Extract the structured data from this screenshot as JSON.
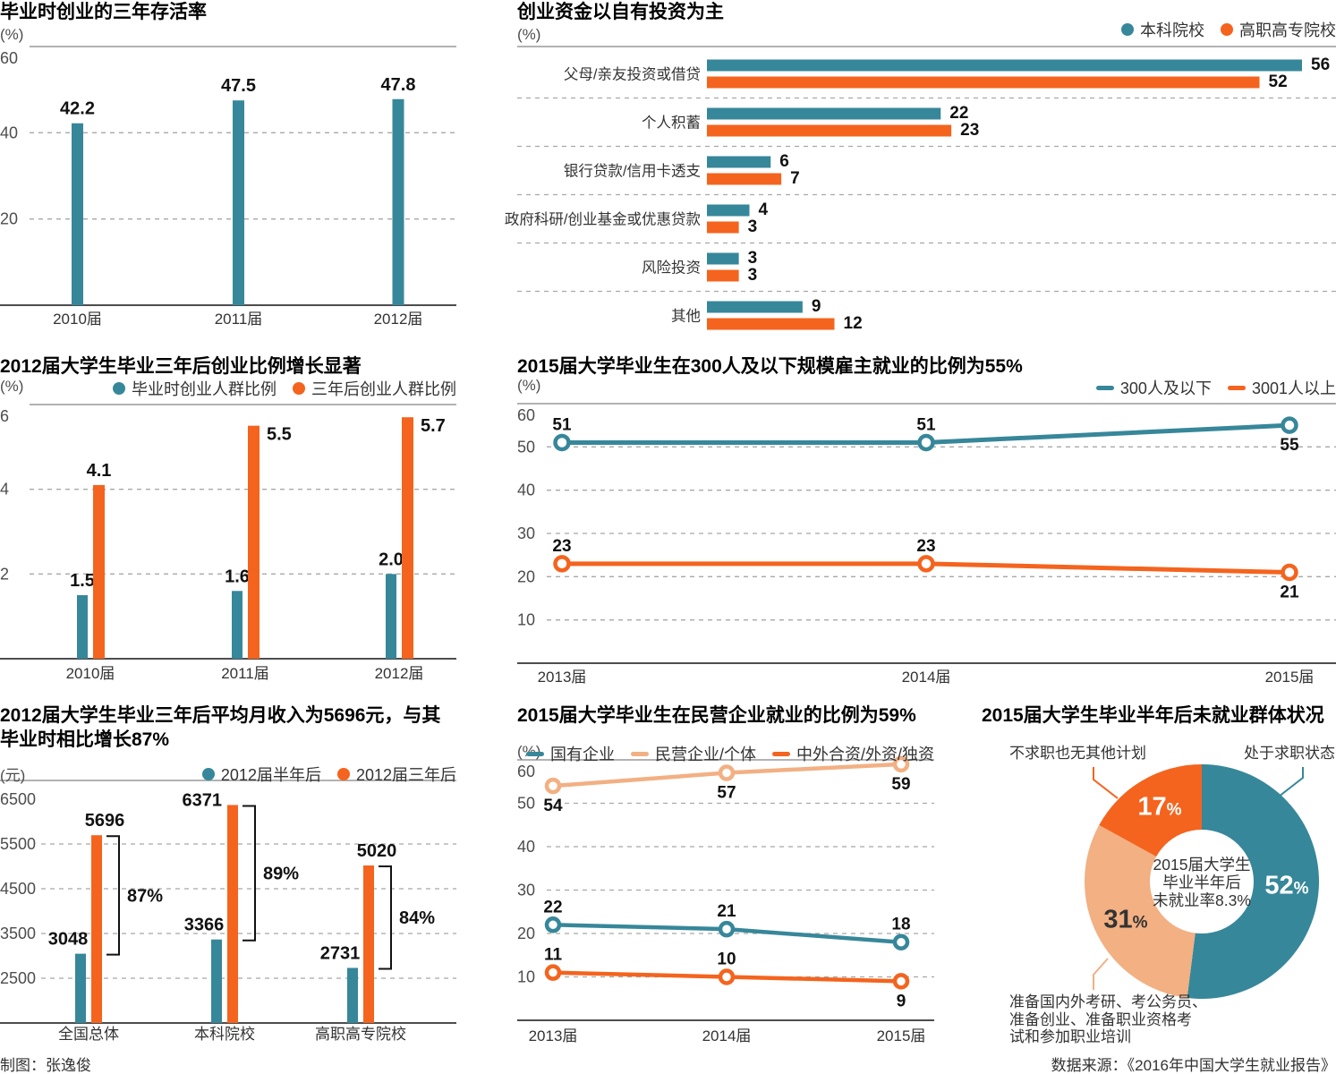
{
  "page": {
    "footer_left": "制图：张逸俊",
    "footer_right": "数据来源：《2016年中国大学生就业报告》",
    "percent_sign": "%"
  },
  "colors": {
    "teal": "#37879A",
    "orange": "#F4641E",
    "peach": "#F2B083",
    "title_text": "#000000",
    "body_text": "#333333",
    "tick_text": "#4D4D4D",
    "gridline": "#A8A8A8",
    "axis_line": "#4D4D4D",
    "top_line": "#999999",
    "value_label": "#111111"
  },
  "chart_data": [
    {
      "id": "survival",
      "type": "bar",
      "title": "毕业时创业的三年存活率",
      "unit": "(%)",
      "categories": [
        "2010届",
        "2011届",
        "2012届"
      ],
      "values": [
        42.2,
        47.5,
        47.8
      ],
      "value_labels": [
        "42.2",
        "47.5",
        "47.8"
      ],
      "series_color": "teal",
      "ylim": [
        0,
        60
      ],
      "yticks": [
        60,
        40,
        20
      ],
      "grid": "dashed"
    },
    {
      "id": "funding",
      "type": "hbar",
      "title": "创业资金以自有投资为主",
      "unit": "(%)",
      "legend": [
        {
          "label": "本科院校",
          "color": "teal",
          "marker": "dot"
        },
        {
          "label": "高职高专院校",
          "color": "orange",
          "marker": "dot"
        }
      ],
      "categories": [
        "父母/亲友投资或借贷",
        "个人积蓄",
        "银行贷款/信用卡透支",
        "政府科研/创业基金或优惠贷款",
        "风险投资",
        "其他"
      ],
      "series": [
        {
          "name": "本科院校",
          "color": "teal",
          "values": [
            56,
            22,
            6,
            4,
            3,
            9
          ]
        },
        {
          "name": "高职高专院校",
          "color": "orange",
          "values": [
            52,
            23,
            7,
            3,
            3,
            12
          ]
        }
      ],
      "xlim": [
        0,
        59
      ]
    },
    {
      "id": "startup",
      "type": "grouped-bar",
      "title": "2012届大学生毕业三年后创业比例增长显著",
      "unit": "(%)",
      "legend": [
        {
          "label": "毕业时创业人群比例",
          "color": "teal",
          "marker": "dot"
        },
        {
          "label": "三年后创业人群比例",
          "color": "orange",
          "marker": "dot"
        }
      ],
      "categories": [
        "2010届",
        "2011届",
        "2012届"
      ],
      "series": [
        {
          "name": "毕业时创业人群比例",
          "color": "teal",
          "values": [
            1.5,
            1.6,
            2.0
          ],
          "value_labels": [
            "1.5",
            "1.6",
            "2.0"
          ]
        },
        {
          "name": "三年后创业人群比例",
          "color": "orange",
          "values": [
            4.1,
            5.5,
            5.7
          ],
          "value_labels": [
            "4.1",
            "5.5",
            "5.7"
          ]
        }
      ],
      "ylim": [
        0,
        6
      ],
      "yticks": [
        6,
        4,
        2
      ],
      "grid": "dashed"
    },
    {
      "id": "employer",
      "type": "line",
      "title": "2015届大学毕业生在300人及以下规模雇主就业的比例为55%",
      "unit": "(%)",
      "legend": [
        {
          "label": "300人及以下",
          "color": "teal",
          "marker": "dash"
        },
        {
          "label": "3001人以上",
          "color": "orange",
          "marker": "dash"
        }
      ],
      "x": [
        "2013届",
        "2014届",
        "2015届"
      ],
      "series": [
        {
          "name": "300人及以下",
          "color": "teal",
          "values": [
            51,
            51,
            55
          ],
          "label_pos": [
            "above",
            "above",
            "below"
          ]
        },
        {
          "name": "3001人以上",
          "color": "orange",
          "values": [
            23,
            23,
            21
          ],
          "label_pos": [
            "above",
            "above",
            "below"
          ]
        }
      ],
      "ylim": [
        0,
        60
      ],
      "yticks": [
        60,
        50,
        40,
        30,
        20,
        10
      ],
      "grid": "dashed"
    },
    {
      "id": "income",
      "type": "grouped-bar",
      "title": "2012届大学生毕业三年后平均月收入为5696元，与其毕业时相比增长87%",
      "unit": "(元)",
      "legend": [
        {
          "label": "2012届半年后",
          "color": "teal",
          "marker": "dot"
        },
        {
          "label": "2012届三年后",
          "color": "orange",
          "marker": "dot"
        }
      ],
      "categories": [
        "全国总体",
        "本科院校",
        "高职高专院校"
      ],
      "series": [
        {
          "name": "2012届半年后",
          "color": "teal",
          "values": [
            3048,
            3366,
            2731
          ]
        },
        {
          "name": "2012届三年后",
          "color": "orange",
          "values": [
            5696,
            6371,
            5020
          ]
        }
      ],
      "growth_labels": [
        "87%",
        "89%",
        "84%"
      ],
      "ylim": [
        1500,
        6920
      ],
      "yticks": [
        6500,
        5500,
        4500,
        3500,
        2500
      ],
      "grid": "dashed"
    },
    {
      "id": "enterprise",
      "type": "line",
      "title": "2015届大学毕业生在民营企业就业的比例为59%",
      "unit": "(%)",
      "legend": [
        {
          "label": "国有企业",
          "color": "teal",
          "marker": "dash"
        },
        {
          "label": "民营企业/个体",
          "color": "peach",
          "marker": "dash"
        },
        {
          "label": "中外合资/外资/独资",
          "color": "orange",
          "marker": "dash"
        }
      ],
      "x": [
        "2013届",
        "2014届",
        "2015届"
      ],
      "series": [
        {
          "name": "国有企业",
          "color": "teal",
          "values": [
            22,
            21,
            18
          ],
          "label_pos": [
            "above",
            "above",
            "above"
          ]
        },
        {
          "name": "民营企业/个体",
          "color": "peach",
          "values": [
            54,
            57,
            59
          ],
          "label_pos": [
            "below",
            "below",
            "below"
          ]
        },
        {
          "name": "中外合资/外资/独资",
          "color": "orange",
          "values": [
            11,
            10,
            9
          ],
          "label_pos": [
            "above",
            "above",
            "below"
          ]
        }
      ],
      "ylim": [
        0,
        60
      ],
      "yticks": [
        60,
        50,
        40,
        30,
        20,
        10
      ],
      "grid": "dashed"
    },
    {
      "id": "unemployed",
      "type": "donut",
      "title": "2015届大学生毕业半年后未就业群体状况",
      "slices": [
        {
          "label": "处于求职状态",
          "value": 52,
          "color": "teal"
        },
        {
          "label": "准备国内外考研、考公务员、准备创业、准备职业资格考试和参加职业培训",
          "value": 31,
          "color": "peach"
        },
        {
          "label": "不求职也无其他计划",
          "value": 17,
          "color": "orange"
        }
      ],
      "center_text": [
        "2015届大学生",
        "毕业半年后",
        "未就业率8.3%"
      ],
      "callouts": {
        "top_left": "不求职也无其他计划",
        "top_right": "处于求职状态",
        "bottom_left": [
          "准备国内外考研、考公务员、",
          "准备创业、准备职业资格考",
          "试和参加职业培训"
        ]
      }
    }
  ]
}
